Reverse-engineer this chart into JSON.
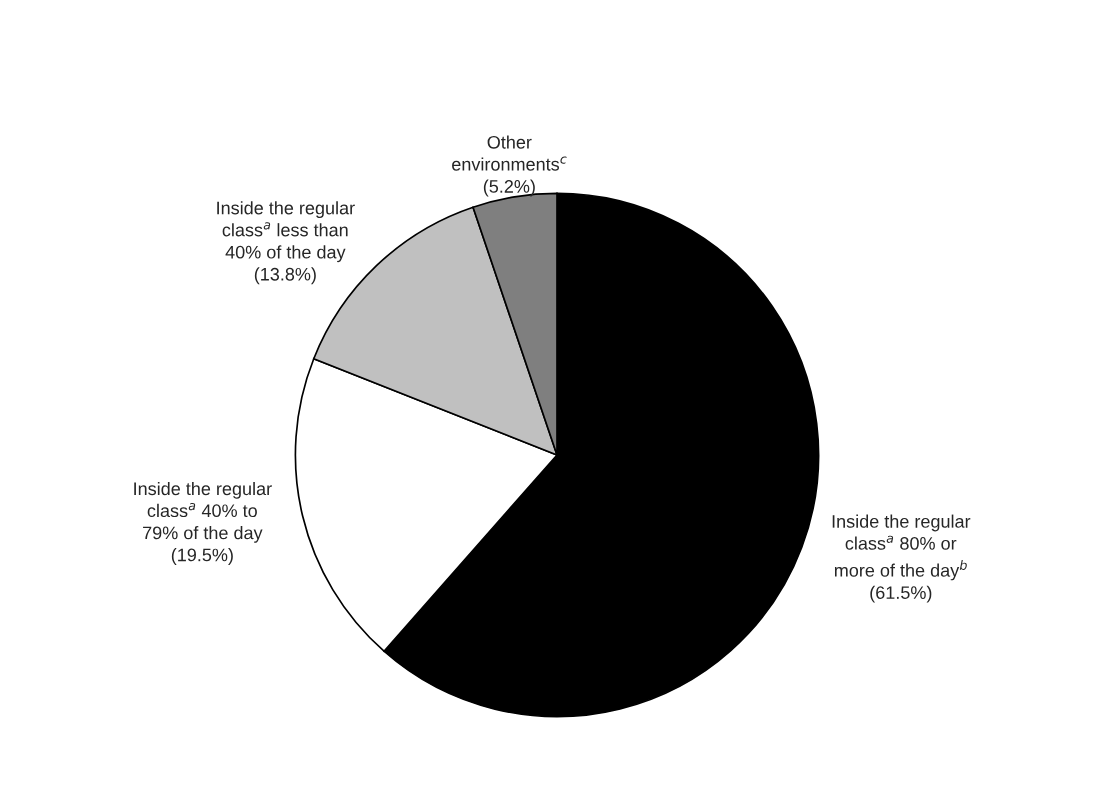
{
  "chart_data": {
    "type": "pie",
    "categories": [
      "Inside the regular\nclass$^{a}$ 80% or\nmore of the day$^{b}$",
      "Inside the regular\nclass$^{a}$ 40% to\n79% of the day",
      "Inside the regular\nclass$^{a}$ less than\n40% of the day",
      "Other\nenvironments$^{c}$"
    ],
    "values": [
      61.5,
      19.5,
      13.8,
      5.2
    ],
    "value_labels": [
      "(61.5%)",
      "(19.5%)",
      "(13.8%)",
      "(5.2%)"
    ],
    "colors": [
      "#000000",
      "#ffffff",
      "#c0c0c0",
      "#7f7f7f"
    ]
  }
}
